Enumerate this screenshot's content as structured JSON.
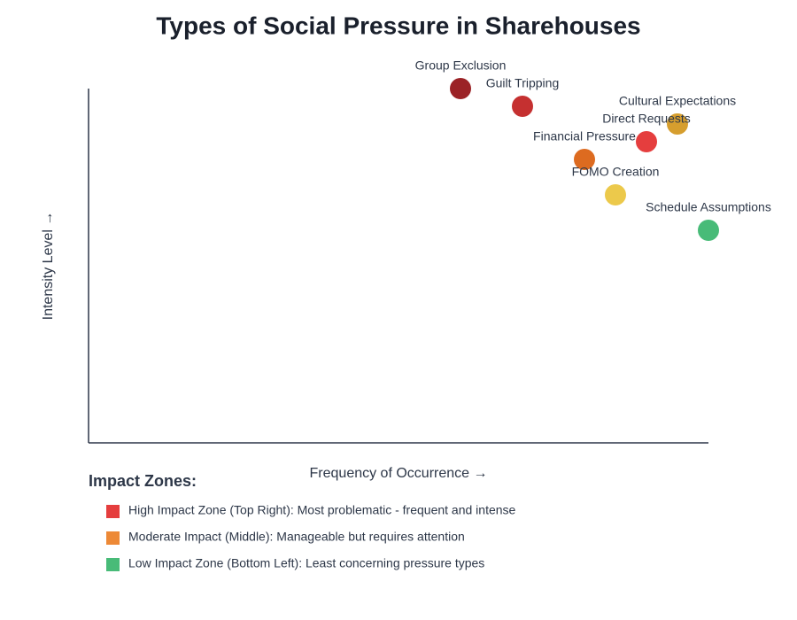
{
  "chart_data": {
    "type": "scatter",
    "title": "Types of Social Pressure in Sharehouses",
    "x_label": "Frequency of Occurrence →",
    "y_label": "Intensity Level →",
    "xlim": [
      0,
      100
    ],
    "ylim": [
      0,
      100
    ],
    "points": [
      {
        "label": "Group Exclusion",
        "x": 60,
        "y": 100,
        "color": "#9b2226"
      },
      {
        "label": "Guilt Tripping",
        "x": 70,
        "y": 95,
        "color": "#c53030"
      },
      {
        "label": "Cultural Expectations",
        "x": 95,
        "y": 90,
        "color": "#d69e2e"
      },
      {
        "label": "Direct Requests",
        "x": 90,
        "y": 85,
        "color": "#e53e3e"
      },
      {
        "label": "Financial Pressure",
        "x": 80,
        "y": 80,
        "color": "#dd6b20"
      },
      {
        "label": "FOMO Creation",
        "x": 85,
        "y": 70,
        "color": "#ecc94b"
      },
      {
        "label": "Schedule Assumptions",
        "x": 100,
        "y": 60,
        "color": "#48bb78"
      }
    ],
    "legend": {
      "title": "Impact Zones:",
      "items": [
        {
          "label": "High Impact Zone (Top Right): Most problematic - frequent and intense",
          "color": "#e53e3e"
        },
        {
          "label": "Moderate Impact (Middle): Manageable but requires attention",
          "color": "#ed8936"
        },
        {
          "label": "Low Impact Zone (Bottom Left): Least concerning pressure types",
          "color": "#48bb78"
        }
      ]
    }
  }
}
